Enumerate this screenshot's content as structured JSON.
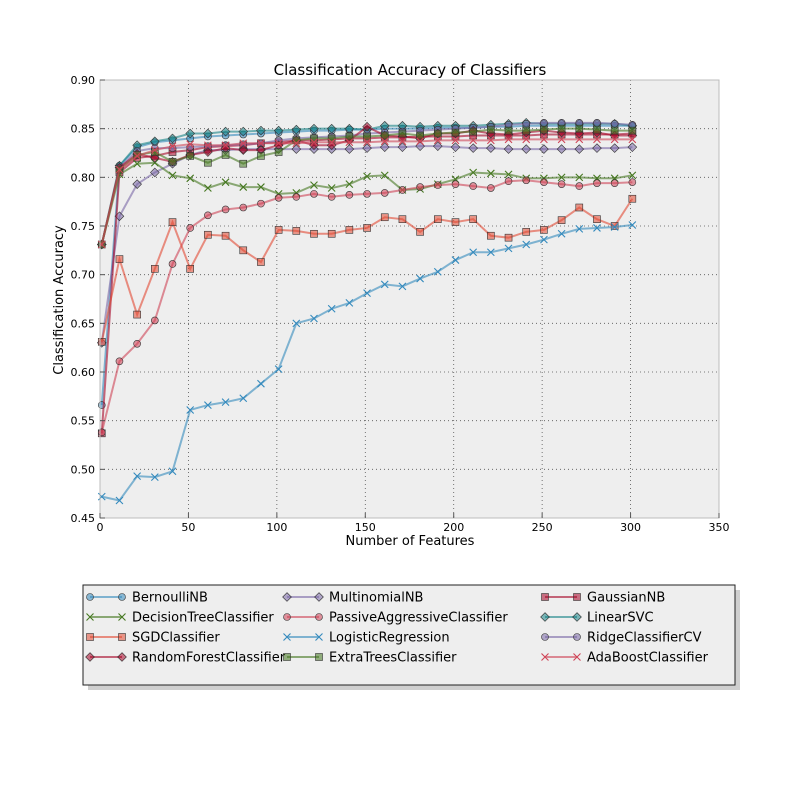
{
  "chart_data": {
    "type": "line",
    "title": "Classification Accuracy of Classifiers",
    "xlabel": "Number of Features",
    "ylabel": "Classification Accuracy",
    "xlim": [
      0,
      350
    ],
    "ylim": [
      0.45,
      0.9
    ],
    "xticks": [
      "0",
      "50",
      "100",
      "150",
      "200",
      "250",
      "300",
      "350"
    ],
    "yticks": [
      "0.45",
      "0.50",
      "0.55",
      "0.60",
      "0.65",
      "0.70",
      "0.75",
      "0.80",
      "0.85",
      "0.90"
    ],
    "grid": true,
    "legend_position": "bottom",
    "x": [
      1,
      11,
      21,
      31,
      41,
      51,
      61,
      71,
      81,
      91,
      101,
      111,
      121,
      131,
      141,
      151,
      161,
      171,
      181,
      191,
      201,
      211,
      221,
      231,
      241,
      251,
      261,
      271,
      281,
      291,
      301
    ],
    "series": [
      {
        "name": "BernoulliNB",
        "color": "#348abd",
        "marker": "o",
        "values": [
          0.566,
          0.812,
          0.831,
          0.836,
          0.838,
          0.84,
          0.842,
          0.843,
          0.844,
          0.845,
          0.846,
          0.847,
          0.848,
          0.848,
          0.849,
          0.849,
          0.85,
          0.85,
          0.85,
          0.851,
          0.851,
          0.851,
          0.852,
          0.852,
          0.853,
          0.853,
          0.853,
          0.853,
          0.853,
          0.853,
          0.853
        ]
      },
      {
        "name": "MultinomialNB",
        "color": "#7a68a6",
        "marker": "D",
        "values": [
          0.63,
          0.76,
          0.793,
          0.805,
          0.814,
          0.823,
          0.828,
          0.828,
          0.829,
          0.829,
          0.829,
          0.829,
          0.829,
          0.829,
          0.829,
          0.83,
          0.831,
          0.831,
          0.832,
          0.832,
          0.831,
          0.83,
          0.83,
          0.829,
          0.829,
          0.829,
          0.829,
          0.829,
          0.83,
          0.83,
          0.831
        ]
      },
      {
        "name": "GaussianNB",
        "color": "#a60628",
        "marker": "s",
        "values": [
          0.537,
          0.805,
          0.82,
          0.822,
          0.826,
          0.828,
          0.831,
          0.832,
          0.833,
          0.835,
          0.836,
          0.838,
          0.838,
          0.839,
          0.84,
          0.84,
          0.841,
          0.841,
          0.842,
          0.842,
          0.842,
          0.843,
          0.843,
          0.843,
          0.843,
          0.844,
          0.844,
          0.844,
          0.844,
          0.844,
          0.845
        ]
      },
      {
        "name": "DecisionTreeClassifier",
        "color": "#467821",
        "marker": "x",
        "values": [
          0.731,
          0.803,
          0.814,
          0.815,
          0.802,
          0.799,
          0.789,
          0.795,
          0.79,
          0.79,
          0.783,
          0.784,
          0.792,
          0.789,
          0.793,
          0.801,
          0.802,
          0.787,
          0.788,
          0.793,
          0.798,
          0.805,
          0.804,
          0.803,
          0.799,
          0.799,
          0.8,
          0.8,
          0.799,
          0.799,
          0.802
        ]
      },
      {
        "name": "PassiveAggressiveClassifier",
        "color": "#cf4457",
        "marker": "o",
        "values": [
          0.538,
          0.611,
          0.629,
          0.653,
          0.711,
          0.748,
          0.761,
          0.767,
          0.769,
          0.773,
          0.779,
          0.78,
          0.783,
          0.78,
          0.782,
          0.783,
          0.784,
          0.787,
          0.79,
          0.792,
          0.793,
          0.791,
          0.789,
          0.796,
          0.797,
          0.795,
          0.793,
          0.791,
          0.794,
          0.794,
          0.795
        ]
      },
      {
        "name": "LinearSVC",
        "color": "#188487",
        "marker": "D",
        "values": [
          0.731,
          0.812,
          0.833,
          0.837,
          0.84,
          0.845,
          0.845,
          0.847,
          0.847,
          0.848,
          0.848,
          0.849,
          0.85,
          0.85,
          0.85,
          0.849,
          0.853,
          0.853,
          0.852,
          0.853,
          0.853,
          0.853,
          0.854,
          0.855,
          0.856,
          0.855,
          0.855,
          0.855,
          0.855,
          0.855,
          0.853
        ]
      },
      {
        "name": "SGDClassifier",
        "color": "#e24a33",
        "marker": "s",
        "values": [
          0.631,
          0.716,
          0.659,
          0.706,
          0.754,
          0.706,
          0.741,
          0.74,
          0.725,
          0.713,
          0.746,
          0.745,
          0.742,
          0.742,
          0.746,
          0.748,
          0.759,
          0.757,
          0.744,
          0.757,
          0.754,
          0.757,
          0.74,
          0.738,
          0.744,
          0.746,
          0.756,
          0.769,
          0.757,
          0.75,
          0.778
        ]
      },
      {
        "name": "LogisticRegression",
        "color": "#348abd",
        "marker": "x",
        "values": [
          0.472,
          0.468,
          0.493,
          0.492,
          0.498,
          0.561,
          0.566,
          0.569,
          0.573,
          0.588,
          0.603,
          0.65,
          0.655,
          0.665,
          0.671,
          0.681,
          0.69,
          0.688,
          0.696,
          0.703,
          0.715,
          0.723,
          0.723,
          0.727,
          0.731,
          0.736,
          0.742,
          0.747,
          0.748,
          0.749,
          0.751
        ]
      },
      {
        "name": "RidgeClassifierCV",
        "color": "#7a68a6",
        "marker": "o",
        "values": [
          0.731,
          0.81,
          0.827,
          0.83,
          0.83,
          0.831,
          0.832,
          0.833,
          0.834,
          0.835,
          0.838,
          0.84,
          0.841,
          0.842,
          0.843,
          0.845,
          0.846,
          0.847,
          0.848,
          0.849,
          0.85,
          0.851,
          0.852,
          0.854,
          0.855,
          0.856,
          0.856,
          0.856,
          0.856,
          0.855,
          0.854
        ]
      },
      {
        "name": "RandomForestClassifier",
        "color": "#a60628",
        "marker": "D",
        "values": [
          0.731,
          0.81,
          0.824,
          0.82,
          0.816,
          0.823,
          0.826,
          0.83,
          0.828,
          0.828,
          0.833,
          0.838,
          0.833,
          0.833,
          0.838,
          0.852,
          0.843,
          0.842,
          0.84,
          0.845,
          0.845,
          0.848,
          0.845,
          0.844,
          0.846,
          0.848,
          0.846,
          0.845,
          0.846,
          0.843,
          0.843
        ]
      },
      {
        "name": "ExtraTreesClassifier",
        "color": "#467821",
        "marker": "s",
        "values": [
          0.731,
          0.808,
          0.823,
          0.826,
          0.816,
          0.822,
          0.815,
          0.823,
          0.814,
          0.822,
          0.826,
          0.838,
          0.84,
          0.84,
          0.842,
          0.842,
          0.843,
          0.845,
          0.843,
          0.845,
          0.846,
          0.847,
          0.849,
          0.848,
          0.848,
          0.849,
          0.85,
          0.85,
          0.849,
          0.848,
          0.848
        ]
      },
      {
        "name": "AdaBoostClassifier",
        "color": "#cf4457",
        "marker": "x",
        "values": [
          0.731,
          0.808,
          0.822,
          0.828,
          0.832,
          0.834,
          0.833,
          0.833,
          0.835,
          0.835,
          0.835,
          0.835,
          0.836,
          0.836,
          0.836,
          0.836,
          0.837,
          0.837,
          0.837,
          0.838,
          0.838,
          0.838,
          0.838,
          0.839,
          0.839,
          0.839,
          0.839,
          0.839,
          0.839,
          0.839,
          0.839
        ]
      }
    ]
  }
}
